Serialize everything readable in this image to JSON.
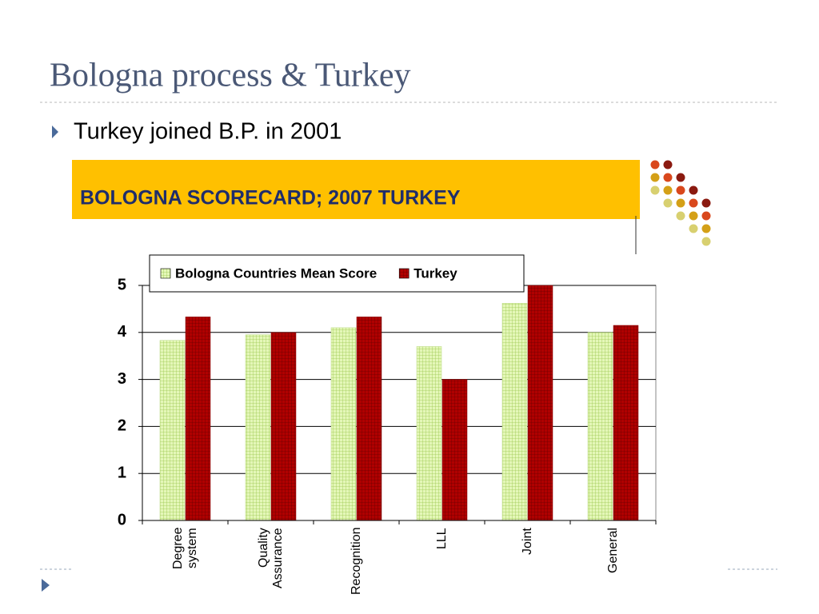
{
  "slide_title": "Bologna process & Turkey",
  "bullet": "Turkey joined B.P. in 2001",
  "banner": "BOLOGNA SCORECARD; 2007 TURKEY",
  "chart_data": {
    "type": "bar",
    "categories": [
      "Degree system",
      "Quality Assurance",
      "Recognition",
      "LLL",
      "Joint",
      "General"
    ],
    "series": [
      {
        "name": "Bologna Countries Mean Score",
        "color": "#e4f7b8",
        "values": [
          3.83,
          3.95,
          4.1,
          3.7,
          4.62,
          4.0
        ]
      },
      {
        "name": "Turkey",
        "color": "#b00000",
        "values": [
          4.33,
          4.0,
          4.33,
          3.0,
          5.0,
          4.15
        ]
      }
    ],
    "ylim": [
      0,
      5
    ],
    "yticks": [
      0,
      1,
      2,
      3,
      4,
      5
    ],
    "grid": true,
    "legend": "top"
  }
}
